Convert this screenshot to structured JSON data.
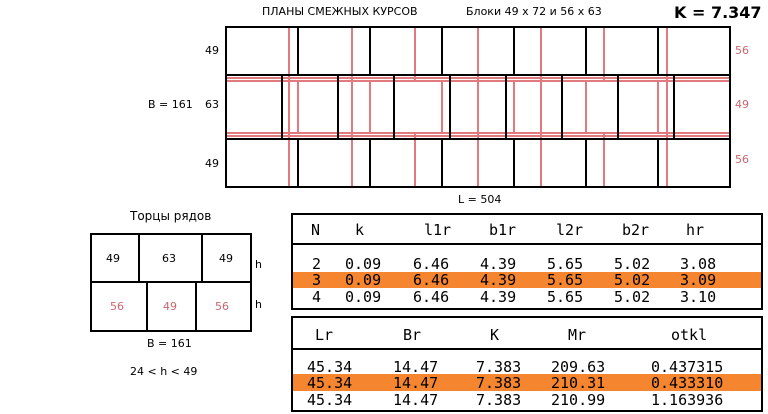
{
  "header": {
    "title": "ПЛАНЫ  СМЕЖНЫХ  КУРСОВ",
    "blocks": "Блоки  49 х 72   и   56 х 63",
    "k_value": "K = 7.347"
  },
  "plan": {
    "row_labels_left": [
      "49",
      "63",
      "49"
    ],
    "row_labels_right": [
      "56",
      "49",
      "56"
    ],
    "width_label": "B = 161",
    "length_label": "L = 504",
    "colors": {
      "black": "#000000",
      "pink": "#e07a7f"
    }
  },
  "ends": {
    "title": "Торцы  рядов",
    "top_row": [
      "49",
      "63",
      "49"
    ],
    "bottom_row": [
      "56",
      "49",
      "56"
    ],
    "h_labels": [
      "h",
      "h"
    ],
    "width_label": "B = 161",
    "constraint": "24  <  h  <  49"
  },
  "table1": {
    "headers": [
      "N",
      "k",
      "l1r",
      "b1r",
      "l2r",
      "b2r",
      "hr"
    ],
    "rows": [
      [
        "2",
        "0.09",
        "6.46",
        "4.39",
        "5.65",
        "5.02",
        "3.08"
      ],
      [
        "3",
        "0.09",
        "6.46",
        "4.39",
        "5.65",
        "5.02",
        "3.09"
      ],
      [
        "4",
        "0.09",
        "6.46",
        "4.39",
        "5.65",
        "5.02",
        "3.10"
      ]
    ],
    "highlight_row": 1
  },
  "table2": {
    "headers": [
      "Lr",
      "Br",
      "K",
      "Mr",
      "otkl"
    ],
    "rows": [
      [
        "45.34",
        "14.47",
        "7.383",
        "209.63",
        "0.437315"
      ],
      [
        "45.34",
        "14.47",
        "7.383",
        "210.31",
        "0.433310"
      ],
      [
        "45.34",
        "14.47",
        "7.383",
        "210.99",
        "1.163936"
      ]
    ],
    "highlight_row": 1
  },
  "colors": {
    "highlight": "#f5852f",
    "pink_text": "#c8676f"
  }
}
